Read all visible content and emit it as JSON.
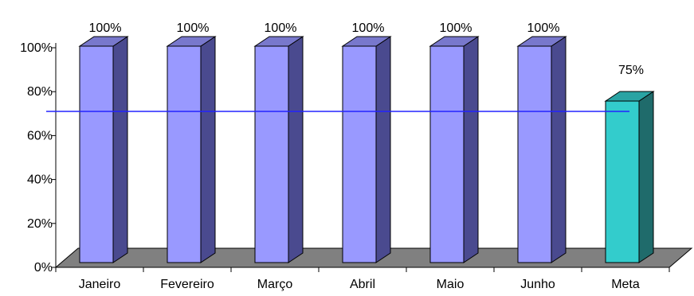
{
  "chart_data": {
    "type": "bar",
    "categories": [
      "Janeiro",
      "Fevereiro",
      "Março",
      "Abril",
      "Maio",
      "Junho",
      "Meta"
    ],
    "values": [
      100,
      100,
      100,
      100,
      100,
      100,
      75
    ],
    "value_labels": [
      "100%",
      "100%",
      "100%",
      "100%",
      "100%",
      "100%",
      "75%"
    ],
    "y_ticks": [
      0,
      20,
      40,
      60,
      80,
      100
    ],
    "y_tick_labels": [
      "0%",
      "20%",
      "40%",
      "60%",
      "80%",
      "100%"
    ],
    "ylim": [
      0,
      100
    ],
    "title": "",
    "xlabel": "",
    "ylabel": "",
    "reference_line": {
      "value": 75,
      "color": "#2323ff"
    },
    "grid": false,
    "legend": "none",
    "colors": {
      "bar_front": "#9999ff",
      "bar_side": "#4a4a8f",
      "bar_top": "#7878cc",
      "meta_front": "#33cccc",
      "meta_side": "#1f6b6b",
      "meta_top": "#29a3a3",
      "floor": "#808080"
    }
  }
}
